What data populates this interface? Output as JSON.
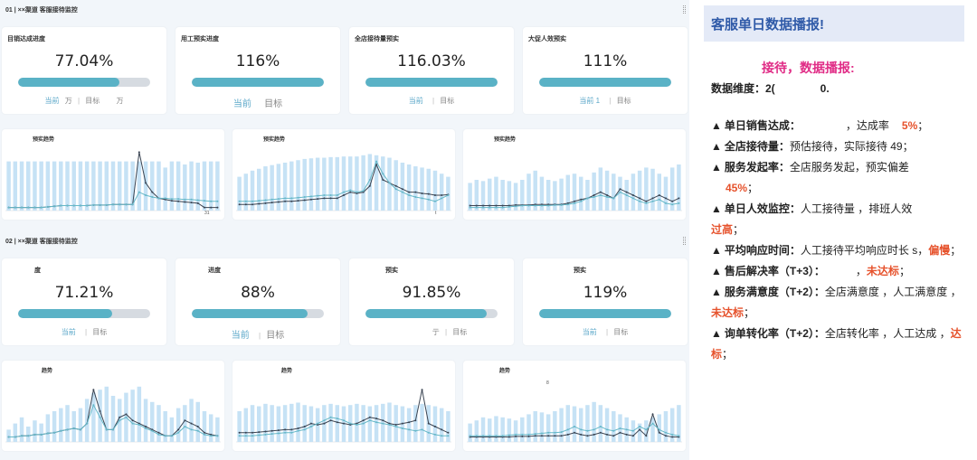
{
  "sections": [
    {
      "title": "01 | ××渠道 客服接待监控",
      "kpis": [
        {
          "label": "目销达成进度",
          "value": "77.04%",
          "progress": 0.77,
          "cur": "当前",
          "cur_tail": "万",
          "target": "目标",
          "target_tail": "万"
        },
        {
          "label": "用工预实进度",
          "value": "116%",
          "progress": 1.0,
          "cur": "当前",
          "cur_tail": "",
          "target": "目标",
          "target_tail": ""
        },
        {
          "label": "全店接待量预实",
          "value": "116.03%",
          "progress": 1.0,
          "cur": "当前",
          "cur_tail": "",
          "target": "目标",
          "target_tail": ""
        },
        {
          "label": "大促人效预实",
          "value": "111%",
          "progress": 1.0,
          "cur": "当前 1",
          "cur_tail": "",
          "target": "目标",
          "target_tail": ""
        }
      ],
      "trends": [
        {
          "title": "预实趋势",
          "note": "31"
        },
        {
          "title": "预实趋势",
          "note": "t"
        },
        {
          "title": "预实趋势",
          "note": ""
        }
      ]
    },
    {
      "title": "02 | ××渠道 客服接待监控",
      "kpis": [
        {
          "label": "度",
          "value": "71.21%",
          "progress": 0.71,
          "cur": "当前",
          "cur_tail": "",
          "target": "目标",
          "target_tail": ""
        },
        {
          "label": "进度",
          "value": "88%",
          "progress": 0.88,
          "cur": "当前",
          "cur_tail": "",
          "target": "目标",
          "target_tail": ""
        },
        {
          "label": "预实",
          "value": "91.85%",
          "progress": 0.92,
          "cur": "",
          "cur_tail": "亍",
          "target": "目标",
          "target_tail": ""
        },
        {
          "label": "预实",
          "value": "119%",
          "progress": 1.0,
          "cur": "当前",
          "cur_tail": "",
          "target": "目标",
          "target_tail": ""
        }
      ],
      "trends": [
        {
          "title": "趋势",
          "note": ""
        },
        {
          "title": "趋势",
          "note": ""
        },
        {
          "title": "趋势",
          "note": "8"
        }
      ]
    }
  ],
  "chart_data": [
    {
      "type": "bar",
      "series": [
        {
          "values": [
            0.8,
            0.8,
            0.8,
            0.8,
            0.8,
            0.8,
            0.8,
            0.8,
            0.8,
            0.8,
            0.8,
            0.8,
            0.8,
            0.8,
            0.8,
            0.8,
            0.8,
            0.8,
            0.8,
            0.8,
            0.8,
            0.8,
            0.8,
            0.8,
            0.7,
            0.8,
            0.8,
            0.75,
            0.8,
            0.78,
            0.8,
            0.8,
            0.8
          ]
        },
        {
          "values": [
            0.05,
            0.05,
            0.05,
            0.05,
            0.05,
            0.05,
            0.06,
            0.07,
            0.08,
            0.08,
            0.08,
            0.08,
            0.08,
            0.09,
            0.09,
            0.09,
            0.1,
            0.1,
            0.1,
            0.1,
            0.95,
            0.45,
            0.3,
            0.2,
            0.18,
            0.16,
            0.15,
            0.14,
            0.13,
            0.12,
            0.05,
            0.05,
            0.05
          ]
        },
        {
          "values": [
            0.05,
            0.05,
            0.05,
            0.05,
            0.05,
            0.05,
            0.06,
            0.07,
            0.08,
            0.08,
            0.08,
            0.08,
            0.08,
            0.09,
            0.09,
            0.09,
            0.1,
            0.1,
            0.1,
            0.1,
            0.3,
            0.25,
            0.22,
            0.2,
            0.2,
            0.19,
            0.19,
            0.18,
            0.18,
            0.17,
            0.16,
            0.15,
            0.15
          ]
        }
      ]
    },
    {
      "type": "bar",
      "series": [
        {
          "values": [
            0.55,
            0.6,
            0.65,
            0.68,
            0.72,
            0.74,
            0.76,
            0.78,
            0.8,
            0.82,
            0.84,
            0.85,
            0.86,
            0.86,
            0.87,
            0.87,
            0.88,
            0.88,
            0.88,
            0.9,
            0.92,
            0.9,
            0.88,
            0.86,
            0.82,
            0.78,
            0.75,
            0.72,
            0.7,
            0.68,
            0.65,
            0.6,
            0.55
          ]
        },
        {
          "values": [
            0.1,
            0.1,
            0.1,
            0.11,
            0.12,
            0.13,
            0.14,
            0.15,
            0.15,
            0.16,
            0.17,
            0.18,
            0.19,
            0.2,
            0.2,
            0.2,
            0.25,
            0.3,
            0.28,
            0.3,
            0.4,
            0.75,
            0.5,
            0.45,
            0.4,
            0.35,
            0.3,
            0.3,
            0.28,
            0.27,
            0.25,
            0.25,
            0.26
          ]
        },
        {
          "values": [
            0.15,
            0.15,
            0.15,
            0.16,
            0.17,
            0.18,
            0.19,
            0.2,
            0.2,
            0.21,
            0.22,
            0.23,
            0.24,
            0.25,
            0.25,
            0.25,
            0.3,
            0.33,
            0.3,
            0.32,
            0.5,
            0.8,
            0.6,
            0.45,
            0.35,
            0.3,
            0.25,
            0.22,
            0.2,
            0.18,
            0.15,
            0.2,
            0.25
          ]
        }
      ]
    },
    {
      "type": "bar",
      "series": [
        {
          "values": [
            0.45,
            0.5,
            0.48,
            0.52,
            0.55,
            0.5,
            0.48,
            0.45,
            0.5,
            0.6,
            0.65,
            0.55,
            0.5,
            0.48,
            0.52,
            0.58,
            0.6,
            0.55,
            0.5,
            0.62,
            0.7,
            0.65,
            0.6,
            0.55,
            0.5,
            0.6,
            0.65,
            0.7,
            0.68,
            0.6,
            0.55,
            0.7,
            0.75
          ]
        },
        {
          "values": [
            0.08,
            0.08,
            0.08,
            0.08,
            0.08,
            0.08,
            0.08,
            0.09,
            0.09,
            0.09,
            0.1,
            0.1,
            0.1,
            0.1,
            0.1,
            0.12,
            0.15,
            0.18,
            0.2,
            0.25,
            0.3,
            0.25,
            0.2,
            0.35,
            0.3,
            0.25,
            0.2,
            0.15,
            0.2,
            0.25,
            0.2,
            0.15,
            0.2
          ]
        },
        {
          "values": [
            0.05,
            0.05,
            0.05,
            0.05,
            0.05,
            0.05,
            0.06,
            0.07,
            0.08,
            0.08,
            0.08,
            0.08,
            0.08,
            0.09,
            0.09,
            0.1,
            0.12,
            0.15,
            0.2,
            0.22,
            0.25,
            0.22,
            0.2,
            0.3,
            0.25,
            0.2,
            0.15,
            0.12,
            0.15,
            0.18,
            0.12,
            0.1,
            0.12
          ]
        }
      ]
    },
    {
      "type": "bar",
      "series": [
        {
          "values": [
            0.2,
            0.3,
            0.4,
            0.25,
            0.35,
            0.3,
            0.45,
            0.5,
            0.55,
            0.6,
            0.5,
            0.55,
            0.7,
            0.8,
            0.85,
            0.9,
            0.75,
            0.7,
            0.8,
            0.85,
            0.9,
            0.7,
            0.65,
            0.6,
            0.5,
            0.4,
            0.55,
            0.6,
            0.7,
            0.65,
            0.5,
            0.45,
            0.4
          ]
        },
        {
          "values": [
            0.08,
            0.08,
            0.1,
            0.1,
            0.12,
            0.12,
            0.14,
            0.15,
            0.18,
            0.2,
            0.22,
            0.2,
            0.3,
            0.85,
            0.5,
            0.2,
            0.2,
            0.4,
            0.45,
            0.35,
            0.3,
            0.25,
            0.2,
            0.15,
            0.1,
            0.1,
            0.2,
            0.35,
            0.3,
            0.25,
            0.15,
            0.12,
            0.1
          ]
        },
        {
          "values": [
            0.08,
            0.08,
            0.1,
            0.1,
            0.12,
            0.12,
            0.14,
            0.15,
            0.18,
            0.2,
            0.22,
            0.2,
            0.3,
            0.6,
            0.4,
            0.2,
            0.2,
            0.35,
            0.4,
            0.3,
            0.28,
            0.22,
            0.18,
            0.12,
            0.1,
            0.1,
            0.15,
            0.25,
            0.2,
            0.18,
            0.12,
            0.1,
            0.1
          ]
        }
      ]
    },
    {
      "type": "bar",
      "series": [
        {
          "values": [
            0.5,
            0.55,
            0.6,
            0.58,
            0.62,
            0.6,
            0.58,
            0.6,
            0.62,
            0.64,
            0.6,
            0.58,
            0.55,
            0.6,
            0.62,
            0.6,
            0.58,
            0.6,
            0.62,
            0.6,
            0.58,
            0.6,
            0.62,
            0.64,
            0.6,
            0.58,
            0.55,
            0.6,
            0.62,
            0.6,
            0.58,
            0.55,
            0.5
          ]
        },
        {
          "values": [
            0.15,
            0.15,
            0.15,
            0.16,
            0.17,
            0.18,
            0.19,
            0.2,
            0.2,
            0.22,
            0.25,
            0.3,
            0.28,
            0.3,
            0.35,
            0.32,
            0.3,
            0.28,
            0.3,
            0.35,
            0.4,
            0.38,
            0.35,
            0.3,
            0.28,
            0.3,
            0.32,
            0.35,
            0.85,
            0.3,
            0.25,
            0.2,
            0.15
          ]
        },
        {
          "values": [
            0.1,
            0.1,
            0.1,
            0.11,
            0.12,
            0.13,
            0.14,
            0.15,
            0.15,
            0.18,
            0.2,
            0.25,
            0.3,
            0.35,
            0.4,
            0.38,
            0.35,
            0.3,
            0.28,
            0.3,
            0.35,
            0.32,
            0.3,
            0.28,
            0.25,
            0.22,
            0.2,
            0.18,
            0.2,
            0.15,
            0.12,
            0.1,
            0.1
          ]
        }
      ]
    },
    {
      "type": "bar",
      "series": [
        {
          "values": [
            0.3,
            0.35,
            0.4,
            0.38,
            0.42,
            0.4,
            0.38,
            0.35,
            0.4,
            0.45,
            0.5,
            0.48,
            0.45,
            0.5,
            0.55,
            0.6,
            0.58,
            0.55,
            0.6,
            0.65,
            0.6,
            0.55,
            0.5,
            0.45,
            0.4,
            0.35,
            0.3,
            0.35,
            0.4,
            0.45,
            0.5,
            0.55,
            0.6
          ]
        },
        {
          "values": [
            0.08,
            0.08,
            0.08,
            0.08,
            0.08,
            0.08,
            0.08,
            0.09,
            0.09,
            0.09,
            0.1,
            0.1,
            0.1,
            0.1,
            0.1,
            0.12,
            0.15,
            0.12,
            0.1,
            0.12,
            0.15,
            0.12,
            0.1,
            0.15,
            0.12,
            0.1,
            0.2,
            0.1,
            0.45,
            0.15,
            0.1,
            0.08,
            0.08
          ]
        },
        {
          "values": [
            0.1,
            0.1,
            0.1,
            0.1,
            0.1,
            0.1,
            0.11,
            0.12,
            0.12,
            0.12,
            0.13,
            0.14,
            0.15,
            0.15,
            0.16,
            0.2,
            0.25,
            0.2,
            0.18,
            0.2,
            0.25,
            0.2,
            0.18,
            0.22,
            0.2,
            0.18,
            0.25,
            0.2,
            0.3,
            0.2,
            0.15,
            0.12,
            0.1
          ]
        }
      ]
    }
  ],
  "report": {
    "title": "客服单日数据播报!",
    "greeting": "接待，数据播报:",
    "dimension_label": "数据维度：2(",
    "dimension_tail": "0.",
    "items": [
      {
        "key": "单日销售达成：",
        "text": "，达成率",
        "highlight": "5%",
        "tail": "；"
      },
      {
        "key": "全店接待量：",
        "text": "预估接待",
        "highlight": "",
        "tail": "，实际接待 49；"
      },
      {
        "key": "服务发起率：",
        "text": "全店服务发起",
        "highlight": "45%",
        "tail": "，预实偏差"
      },
      {
        "key": "单日人效监控：",
        "text": "人工接待量 ，排班人效",
        "highlight": "过高",
        "tail": "；"
      },
      {
        "key": "平均响应时间：",
        "text": "人工接待平均响应时长 s，",
        "highlight": "偏慢",
        "tail": "；"
      },
      {
        "key": "售后解决率（T+3）：",
        "text": "，",
        "highlight": "未达标",
        "tail": "；"
      },
      {
        "key": "服务满意度（T+2）：",
        "text": "全店满意度 ，人工满意度 ，",
        "highlight": "未达标",
        "tail": "；"
      },
      {
        "key": "询单转化率（T+2）：",
        "text": "全店转化率 ，人工达成 ，",
        "highlight": "达标",
        "tail": "；"
      }
    ],
    "bullet": "▲"
  },
  "colors": {
    "bar": "#c6e2f5",
    "line_dark": "#3a4452",
    "line_teal": "#66b8c8",
    "accent": "#5ab2c6",
    "red": "#e6522c",
    "pink": "#e02c86"
  }
}
